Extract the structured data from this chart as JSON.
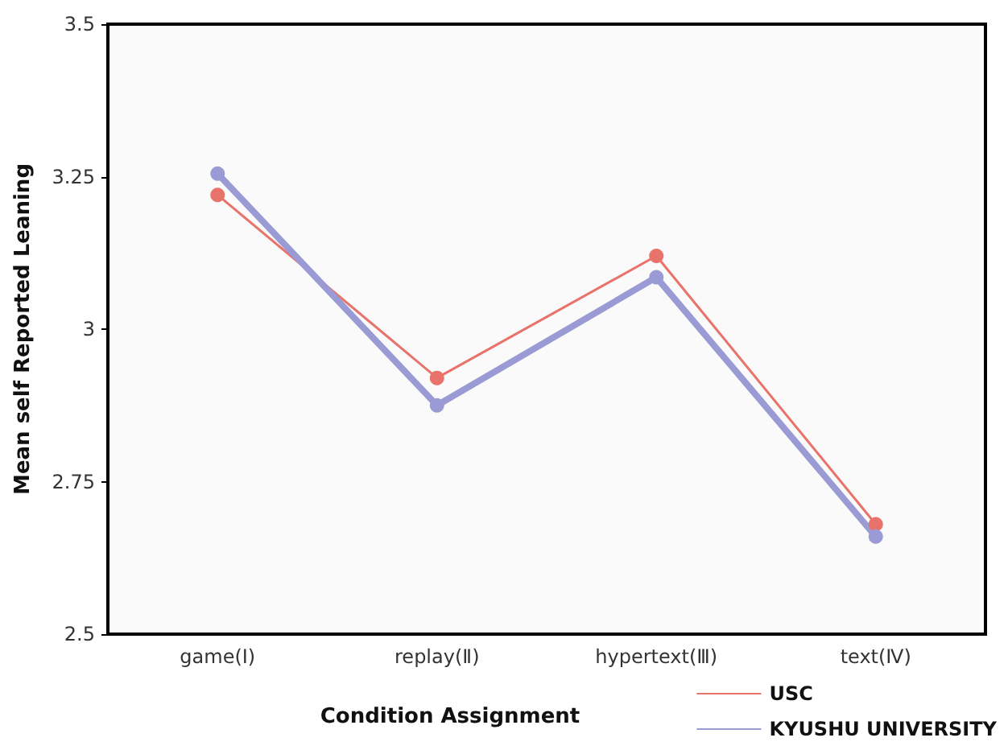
{
  "chart_data": {
    "type": "line",
    "xlabel": "Condition Assignment",
    "ylabel": "Mean self Reported Leaning",
    "categories": [
      "game(Ⅰ)",
      "replay(Ⅱ)",
      "hypertext(Ⅲ)",
      "text(Ⅳ)"
    ],
    "series": [
      {
        "name": "USC",
        "color": "#e8736a",
        "values": [
          3.22,
          2.92,
          3.12,
          2.68
        ]
      },
      {
        "name": "KYUSHU UNIVERSITY",
        "color": "#9a9ad4",
        "values": [
          3.255,
          2.875,
          3.085,
          2.66
        ]
      }
    ],
    "ylim": [
      2.5,
      3.5
    ],
    "yticks": [
      {
        "value": 2.5,
        "label": "2.5"
      },
      {
        "value": 2.75,
        "label": "2.75"
      },
      {
        "value": 3,
        "label": "3"
      },
      {
        "value": 3.25,
        "label": "3.25"
      },
      {
        "value": 3.5,
        "label": "3.5"
      }
    ],
    "grid": false,
    "legend": "bottom right",
    "marker": "circle",
    "line_style": "solid"
  }
}
